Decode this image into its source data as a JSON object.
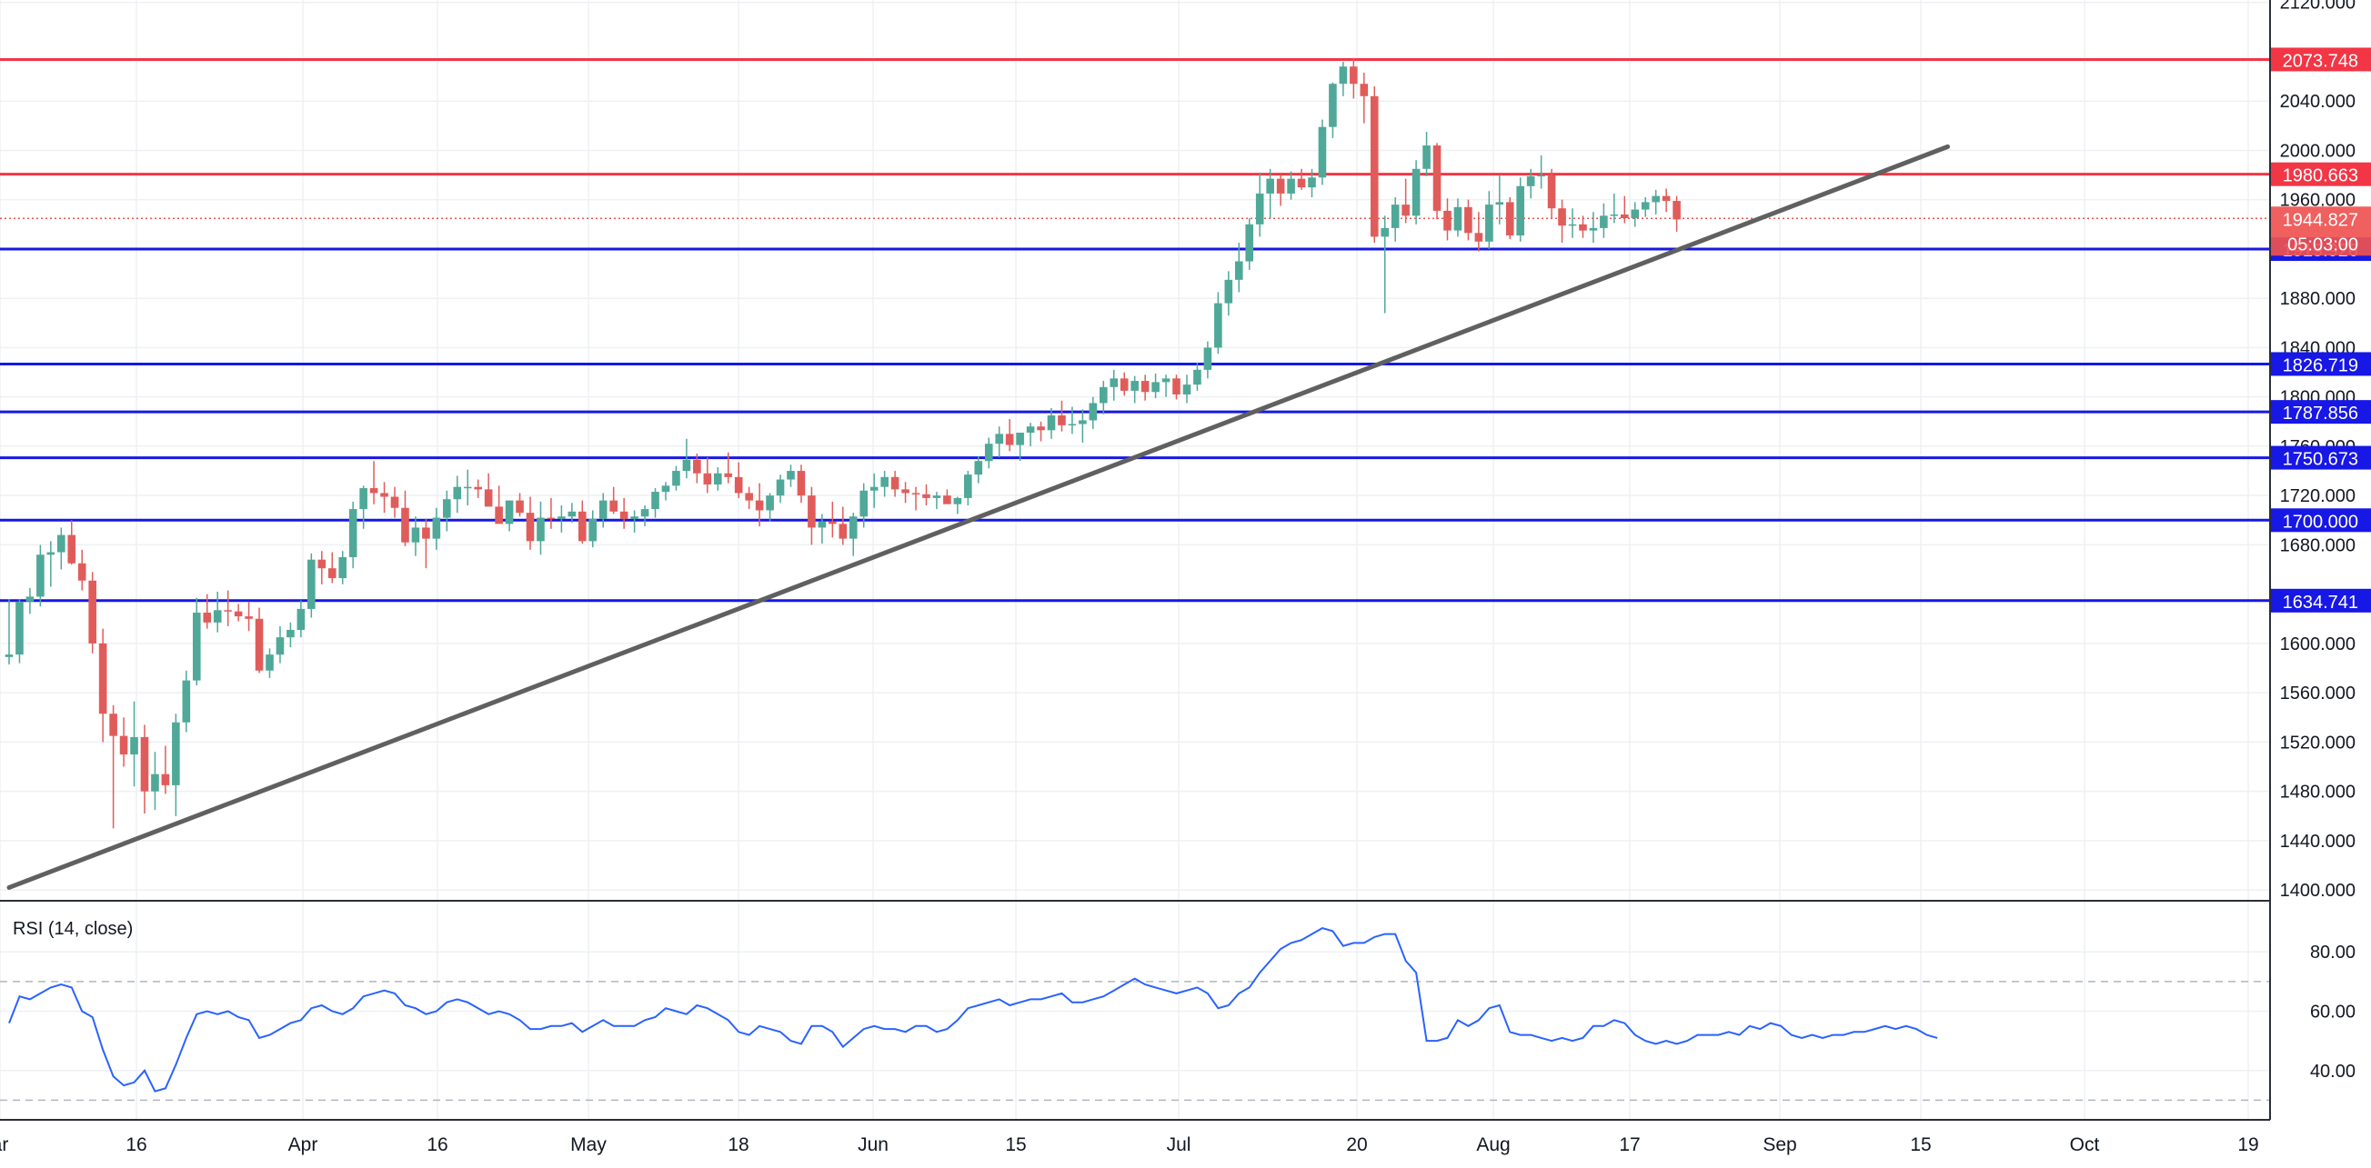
{
  "chart_data": [
    {
      "type": "candlestick",
      "x_tick_labels": [
        "ar",
        "16",
        "Apr",
        "16",
        "May",
        "18",
        "Jun",
        "15",
        "Jul",
        "20",
        "Aug",
        "17",
        "Sep",
        "15",
        "Oct",
        "19"
      ],
      "y_tick_labels": [
        "2120.000",
        "2040.000",
        "2000.000",
        "1960.000",
        "1880.000",
        "1840.000",
        "1800.000",
        "1760.000",
        "1720.000",
        "1680.000",
        "1600.000",
        "1560.000",
        "1520.000",
        "1480.000",
        "1440.000",
        "1400.000"
      ],
      "ylim": [
        1392,
        2122
      ],
      "grid": true,
      "candles": [
        [
          1589,
          1636,
          1583,
          1591
        ],
        [
          1591,
          1636,
          1584,
          1634
        ],
        [
          1634,
          1645,
          1624,
          1638
        ],
        [
          1638,
          1680,
          1630,
          1672
        ],
        [
          1672,
          1683,
          1646,
          1674
        ],
        [
          1674,
          1694,
          1660,
          1688
        ],
        [
          1688,
          1700,
          1664,
          1665
        ],
        [
          1665,
          1676,
          1643,
          1651
        ],
        [
          1651,
          1658,
          1592,
          1600
        ],
        [
          1600,
          1612,
          1520,
          1543
        ],
        [
          1543,
          1550,
          1450,
          1525
        ],
        [
          1525,
          1540,
          1500,
          1510
        ],
        [
          1510,
          1553,
          1484,
          1524
        ],
        [
          1524,
          1534,
          1462,
          1480
        ],
        [
          1480,
          1512,
          1465,
          1494
        ],
        [
          1494,
          1517,
          1478,
          1485
        ],
        [
          1485,
          1543,
          1460,
          1536
        ],
        [
          1536,
          1578,
          1528,
          1570
        ],
        [
          1570,
          1637,
          1566,
          1625
        ],
        [
          1625,
          1640,
          1612,
          1617
        ],
        [
          1617,
          1642,
          1609,
          1627
        ],
        [
          1627,
          1643,
          1614,
          1626
        ],
        [
          1626,
          1632,
          1618,
          1622
        ],
        [
          1622,
          1634,
          1610,
          1620
        ],
        [
          1620,
          1629,
          1576,
          1578
        ],
        [
          1578,
          1596,
          1572,
          1591
        ],
        [
          1591,
          1614,
          1584,
          1605
        ],
        [
          1605,
          1617,
          1597,
          1611
        ],
        [
          1611,
          1635,
          1605,
          1628
        ],
        [
          1628,
          1673,
          1621,
          1668
        ],
        [
          1668,
          1675,
          1648,
          1661
        ],
        [
          1661,
          1674,
          1649,
          1653
        ],
        [
          1653,
          1675,
          1648,
          1670
        ],
        [
          1670,
          1715,
          1661,
          1709
        ],
        [
          1709,
          1728,
          1693,
          1726
        ],
        [
          1726,
          1748,
          1713,
          1722
        ],
        [
          1722,
          1731,
          1706,
          1719
        ],
        [
          1719,
          1727,
          1702,
          1710
        ],
        [
          1710,
          1724,
          1679,
          1682
        ],
        [
          1682,
          1703,
          1671,
          1694
        ],
        [
          1694,
          1701,
          1661,
          1685
        ],
        [
          1685,
          1710,
          1676,
          1702
        ],
        [
          1702,
          1724,
          1691,
          1717
        ],
        [
          1717,
          1736,
          1706,
          1727
        ],
        [
          1727,
          1741,
          1712,
          1727
        ],
        [
          1727,
          1733,
          1718,
          1725
        ],
        [
          1725,
          1738,
          1715,
          1711
        ],
        [
          1711,
          1728,
          1701,
          1697
        ],
        [
          1697,
          1716,
          1691,
          1716
        ],
        [
          1716,
          1722,
          1703,
          1706
        ],
        [
          1706,
          1719,
          1676,
          1683
        ],
        [
          1683,
          1715,
          1672,
          1702
        ],
        [
          1702,
          1718,
          1693,
          1701
        ],
        [
          1701,
          1712,
          1690,
          1703
        ],
        [
          1703,
          1714,
          1698,
          1707
        ],
        [
          1707,
          1716,
          1681,
          1683
        ],
        [
          1683,
          1708,
          1678,
          1701
        ],
        [
          1701,
          1722,
          1694,
          1716
        ],
        [
          1716,
          1727,
          1705,
          1707
        ],
        [
          1707,
          1718,
          1693,
          1701
        ],
        [
          1701,
          1708,
          1690,
          1703
        ],
        [
          1703,
          1712,
          1695,
          1709
        ],
        [
          1709,
          1726,
          1702,
          1723
        ],
        [
          1723,
          1731,
          1716,
          1728
        ],
        [
          1728,
          1744,
          1724,
          1740
        ],
        [
          1740,
          1766,
          1734,
          1749
        ],
        [
          1749,
          1754,
          1730,
          1738
        ],
        [
          1738,
          1751,
          1722,
          1729
        ],
        [
          1729,
          1743,
          1724,
          1738
        ],
        [
          1738,
          1755,
          1730,
          1735
        ],
        [
          1735,
          1747,
          1718,
          1722
        ],
        [
          1722,
          1727,
          1709,
          1716
        ],
        [
          1716,
          1730,
          1695,
          1708
        ],
        [
          1708,
          1722,
          1699,
          1720
        ],
        [
          1720,
          1737,
          1714,
          1733
        ],
        [
          1733,
          1745,
          1727,
          1740
        ],
        [
          1740,
          1745,
          1714,
          1720
        ],
        [
          1720,
          1727,
          1680,
          1694
        ],
        [
          1694,
          1705,
          1681,
          1699
        ],
        [
          1699,
          1715,
          1686,
          1697
        ],
        [
          1697,
          1711,
          1680,
          1685
        ],
        [
          1685,
          1706,
          1671,
          1703
        ],
        [
          1703,
          1730,
          1694,
          1724
        ],
        [
          1724,
          1738,
          1710,
          1727
        ],
        [
          1727,
          1740,
          1719,
          1735
        ],
        [
          1735,
          1740,
          1719,
          1725
        ],
        [
          1725,
          1731,
          1714,
          1722
        ],
        [
          1722,
          1727,
          1708,
          1721
        ],
        [
          1721,
          1729,
          1712,
          1718
        ],
        [
          1718,
          1723,
          1709,
          1720
        ],
        [
          1720,
          1725,
          1714,
          1713
        ],
        [
          1713,
          1719,
          1705,
          1718
        ],
        [
          1718,
          1740,
          1712,
          1737
        ],
        [
          1737,
          1752,
          1730,
          1748
        ],
        [
          1748,
          1767,
          1742,
          1762
        ],
        [
          1762,
          1776,
          1751,
          1770
        ],
        [
          1770,
          1782,
          1756,
          1761
        ],
        [
          1761,
          1770,
          1748,
          1771
        ],
        [
          1771,
          1779,
          1760,
          1776
        ],
        [
          1776,
          1780,
          1764,
          1773
        ],
        [
          1773,
          1791,
          1766,
          1785
        ],
        [
          1785,
          1797,
          1772,
          1777
        ],
        [
          1777,
          1792,
          1770,
          1778
        ],
        [
          1778,
          1790,
          1763,
          1781
        ],
        [
          1781,
          1800,
          1774,
          1795
        ],
        [
          1795,
          1813,
          1786,
          1808
        ],
        [
          1808,
          1822,
          1797,
          1815
        ],
        [
          1815,
          1820,
          1801,
          1805
        ],
        [
          1805,
          1817,
          1795,
          1813
        ],
        [
          1813,
          1818,
          1797,
          1804
        ],
        [
          1804,
          1819,
          1799,
          1812
        ],
        [
          1812,
          1818,
          1800,
          1815
        ],
        [
          1815,
          1818,
          1798,
          1802
        ],
        [
          1802,
          1818,
          1795,
          1810
        ],
        [
          1810,
          1828,
          1805,
          1822
        ],
        [
          1822,
          1845,
          1815,
          1840
        ],
        [
          1840,
          1885,
          1835,
          1876
        ],
        [
          1876,
          1902,
          1866,
          1895
        ],
        [
          1895,
          1925,
          1885,
          1910
        ],
        [
          1910,
          1945,
          1903,
          1940
        ],
        [
          1940,
          1982,
          1930,
          1965
        ],
        [
          1965,
          1985,
          1945,
          1977
        ],
        [
          1977,
          1980,
          1955,
          1965
        ],
        [
          1965,
          1983,
          1960,
          1977
        ],
        [
          1977,
          1985,
          1968,
          1970
        ],
        [
          1970,
          1985,
          1962,
          1978
        ],
        [
          1978,
          2025,
          1972,
          2019
        ],
        [
          2019,
          2055,
          2010,
          2054
        ],
        [
          2054,
          2072,
          2044,
          2068
        ],
        [
          2068,
          2075,
          2042,
          2054
        ],
        [
          2054,
          2063,
          2022,
          2044
        ],
        [
          2044,
          2052,
          1925,
          1930
        ],
        [
          1930,
          1947,
          1868,
          1937
        ],
        [
          1937,
          1962,
          1926,
          1956
        ],
        [
          1956,
          1977,
          1941,
          1947
        ],
        [
          1947,
          1992,
          1940,
          1985
        ],
        [
          1985,
          2015,
          1979,
          2004
        ],
        [
          2004,
          2006,
          1944,
          1951
        ],
        [
          1951,
          1961,
          1927,
          1935
        ],
        [
          1935,
          1961,
          1930,
          1954
        ],
        [
          1954,
          1960,
          1927,
          1933
        ],
        [
          1933,
          1950,
          1918,
          1926
        ],
        [
          1926,
          1967,
          1920,
          1956
        ],
        [
          1956,
          1980,
          1940,
          1958
        ],
        [
          1958,
          1962,
          1928,
          1931
        ],
        [
          1931,
          1978,
          1926,
          1971
        ],
        [
          1971,
          1985,
          1961,
          1979
        ],
        [
          1979,
          1996,
          1969,
          1980
        ],
        [
          1980,
          1985,
          1945,
          1953
        ],
        [
          1953,
          1960,
          1925,
          1939
        ],
        [
          1939,
          1953,
          1929,
          1940
        ],
        [
          1940,
          1947,
          1929,
          1935
        ],
        [
          1935,
          1950,
          1925,
          1937
        ],
        [
          1937,
          1957,
          1929,
          1947
        ],
        [
          1947,
          1965,
          1941,
          1948
        ],
        [
          1948,
          1963,
          1941,
          1945
        ],
        [
          1945,
          1958,
          1938,
          1952
        ],
        [
          1952,
          1962,
          1946,
          1958
        ],
        [
          1958,
          1968,
          1948,
          1963
        ],
        [
          1963,
          1969,
          1950,
          1959
        ],
        [
          1959,
          1963,
          1934,
          1944
        ]
      ],
      "horizontal_levels": [
        {
          "label": "2073.748",
          "value": 2073.748,
          "color": "#f23645"
        },
        {
          "label": "1980.663",
          "value": 1980.663,
          "color": "#f23645"
        },
        {
          "label": "1919.926",
          "value": 1919.926,
          "color": "#1717e6"
        },
        {
          "label": "1826.719",
          "value": 1826.719,
          "color": "#1717e6"
        },
        {
          "label": "1787.856",
          "value": 1787.856,
          "color": "#1717e6"
        },
        {
          "label": "1750.673",
          "value": 1750.673,
          "color": "#1717e6"
        },
        {
          "label": "1700.000",
          "value": 1700.0,
          "color": "#1717e6"
        },
        {
          "label": "1634.741",
          "value": 1634.741,
          "color": "#1717e6"
        }
      ],
      "current_price": {
        "label": "1944.827",
        "value": 1944.827,
        "countdown": "05:03:00",
        "color": "#ef5350"
      },
      "trendline": {
        "from_candle": 0,
        "from_price": 1402,
        "to_candle": 186,
        "to_price": 2003,
        "color": "#606060"
      }
    },
    {
      "type": "line",
      "title": "RSI (14, close)",
      "y_tick_labels": [
        "80.00",
        "60.00",
        "40.00"
      ],
      "ylim": [
        24,
        96
      ],
      "levels": [
        70,
        30
      ],
      "series": [
        {
          "color": "#2962ff",
          "values": [
            56,
            65,
            64,
            66,
            68,
            69,
            68,
            60,
            58,
            47,
            38,
            35,
            36,
            40,
            33,
            34,
            42,
            51,
            59,
            60,
            59,
            60,
            58,
            57,
            51,
            52,
            54,
            56,
            57,
            61,
            62,
            60,
            59,
            61,
            65,
            66,
            67,
            66,
            62,
            61,
            59,
            60,
            63,
            64,
            63,
            61,
            59,
            60,
            59,
            57,
            54,
            54,
            55,
            55,
            56,
            53,
            55,
            57,
            55,
            55,
            55,
            57,
            58,
            61,
            60,
            59,
            62,
            61,
            59,
            57,
            53,
            52,
            55,
            54,
            53,
            50,
            49,
            55,
            55,
            53,
            48,
            51,
            54,
            55,
            54,
            54,
            53,
            55,
            55,
            53,
            54,
            57,
            61,
            62,
            63,
            64,
            62,
            63,
            64,
            64,
            65,
            66,
            63,
            63,
            64,
            65,
            67,
            69,
            71,
            69,
            68,
            67,
            66,
            67,
            68,
            66,
            61,
            62,
            66,
            68,
            73,
            77,
            81,
            83,
            84,
            86,
            88,
            87,
            82,
            83,
            83,
            85,
            86,
            86,
            77,
            73,
            50,
            50,
            51,
            57,
            55,
            57,
            61,
            62,
            53,
            52,
            52,
            51,
            50,
            51,
            50,
            51,
            55,
            55,
            57,
            56,
            52,
            50,
            49,
            50,
            49,
            50,
            52,
            52,
            52,
            53,
            52,
            55,
            54,
            56,
            55,
            52,
            51,
            52,
            51,
            52,
            52,
            53,
            53,
            54,
            55,
            54,
            55,
            54,
            52,
            51
          ]
        }
      ]
    }
  ]
}
